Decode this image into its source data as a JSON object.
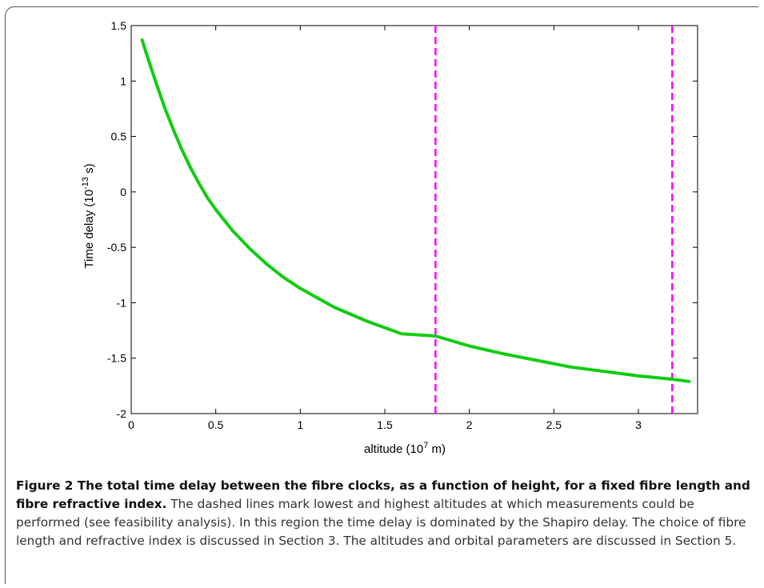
{
  "chart_data": {
    "type": "line",
    "xlabel_base": "altitude (10",
    "xlabel_sup": "7",
    "xlabel_unit": " m)",
    "ylabel_base": "Time delay (10",
    "ylabel_sup": "-13",
    "ylabel_unit": " s)",
    "xlim": [
      0,
      3.35
    ],
    "ylim": [
      -2,
      1.5
    ],
    "xticks": [
      0,
      0.5,
      1,
      1.5,
      2,
      2.5,
      3
    ],
    "xtick_labels": [
      "0",
      "0.5",
      "1",
      "1.5",
      "2",
      "2.5",
      "3"
    ],
    "yticks": [
      -2,
      -1.5,
      -1,
      -0.5,
      0,
      0.5,
      1,
      1.5
    ],
    "ytick_labels": [
      "-2",
      "-1.5",
      "-1",
      "-0.5",
      "0",
      "0.5",
      "1",
      "1.5"
    ],
    "grid": false,
    "series": [
      {
        "color": "#11cc11",
        "x": [
          0.065,
          0.1,
          0.15,
          0.2,
          0.25,
          0.3,
          0.35,
          0.4,
          0.45,
          0.5,
          0.6,
          0.7,
          0.8,
          0.9,
          1.0,
          1.2,
          1.4,
          1.6,
          1.8,
          2.0,
          2.2,
          2.4,
          2.6,
          2.8,
          3.0,
          3.2,
          3.3
        ],
        "y": [
          1.37,
          1.2,
          0.97,
          0.75,
          0.56,
          0.38,
          0.22,
          0.08,
          -0.05,
          -0.16,
          -0.35,
          -0.51,
          -0.65,
          -0.77,
          -0.87,
          -1.04,
          -1.17,
          -1.28,
          -1.3,
          -1.39,
          -1.46,
          -1.52,
          -1.58,
          -1.62,
          -1.66,
          -1.69,
          -1.71
        ]
      }
    ],
    "vlines": [
      {
        "x": 1.8,
        "color": "#ff00ff",
        "style": "dashed"
      },
      {
        "x": 3.2,
        "color": "#ff00ff",
        "style": "dashed"
      }
    ]
  },
  "caption": {
    "bold": "Figure 2  The total time delay between the fibre clocks, as a function of height, for a fixed fibre length and fibre refractive index.",
    "text": " The dashed lines mark lowest and highest altitudes at which measurements could be performed (see feasibility analysis). In this region the time delay is dominated by the Shapiro delay. The choice of fibre length and refractive index is discussed in Section 3. The altitudes and orbital parameters are discussed in Section 5."
  }
}
